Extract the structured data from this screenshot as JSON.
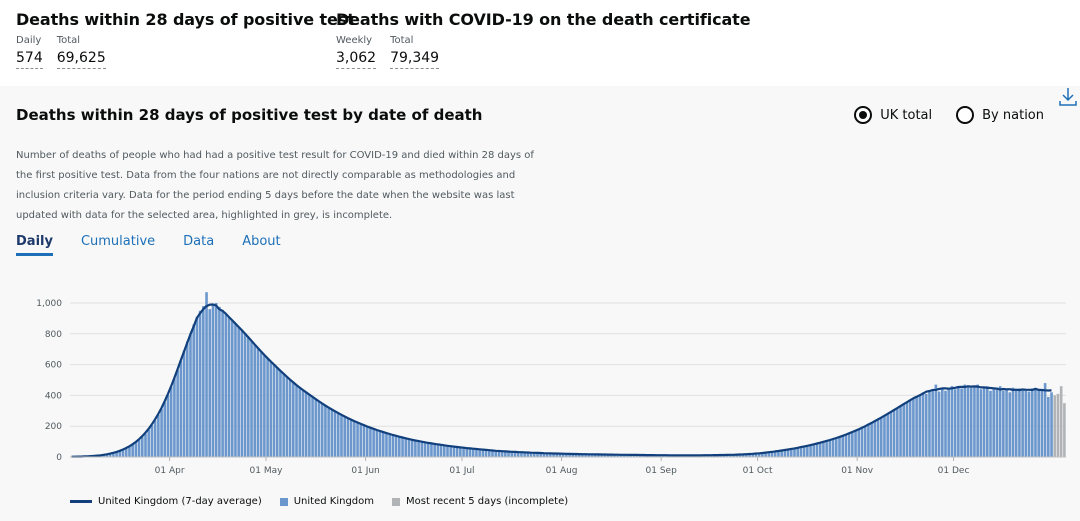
{
  "headlines": [
    {
      "title": "Deaths within 28 days of positive test",
      "metrics": [
        {
          "label": "Daily",
          "value": "574"
        },
        {
          "label": "Total",
          "value": "69,625"
        }
      ]
    },
    {
      "title": "Deaths with COVID-19 on the death certificate",
      "metrics": [
        {
          "label": "Weekly",
          "value": "3,062"
        },
        {
          "label": "Total",
          "value": "79,349"
        }
      ]
    }
  ],
  "card": {
    "title": "Deaths within 28 days of positive test by date of death",
    "radios": [
      {
        "label": "UK total",
        "checked": true
      },
      {
        "label": "By nation",
        "checked": false
      }
    ],
    "description": "Number of deaths of people who had had a positive test result for COVID-19 and died within 28 days of the first positive test. Data from the four nations are not directly comparable as methodologies and inclusion criteria vary. Data for the period ending 5 days before the date when the website was last updated with data for the selected area, highlighted in grey, is incomplete.",
    "tabs": [
      "Daily",
      "Cumulative",
      "Data",
      "About"
    ],
    "download_icon": "download-icon"
  },
  "colors": {
    "bar": "#6b97cd",
    "incomplete": "#b1b4b6",
    "line": "#12407c",
    "tab_active": "#1d70b8"
  },
  "chart_data": {
    "type": "bar",
    "xlabel": "",
    "ylabel": "",
    "ylim": [
      0,
      1000
    ],
    "yticks": [
      "0",
      "200",
      "400",
      "600",
      "800",
      "1,000"
    ],
    "xticks": [
      "01 Apr",
      "01 May",
      "01 Jun",
      "01 Jul",
      "01 Aug",
      "01 Sep",
      "01 Oct",
      "01 Nov",
      "01 Dec"
    ],
    "legend": [
      {
        "name": "United Kingdom (7-day average)",
        "kind": "line"
      },
      {
        "name": "United Kingdom",
        "kind": "bar"
      },
      {
        "name": "Most recent 5 days (incomplete)",
        "kind": "incomplete"
      }
    ],
    "start_date": "2020-03-01",
    "daily_values": [
      1,
      2,
      2,
      3,
      3,
      4,
      5,
      6,
      8,
      10,
      13,
      16,
      20,
      25,
      31,
      38,
      46,
      55,
      66,
      79,
      94,
      110,
      130,
      152,
      178,
      206,
      238,
      273,
      312,
      355,
      402,
      455,
      510,
      565,
      625,
      690,
      750,
      800,
      860,
      910,
      950,
      980,
      1070,
      960,
      990,
      1000,
      975,
      955,
      930,
      905,
      885,
      865,
      845,
      825,
      805,
      780,
      755,
      730,
      705,
      680,
      660,
      640,
      620,
      600,
      580,
      560,
      540,
      520,
      500,
      480,
      465,
      450,
      435,
      420,
      405,
      390,
      375,
      360,
      345,
      332,
      320,
      308,
      296,
      284,
      273,
      262,
      252,
      242,
      232,
      223,
      214,
      206,
      198,
      190,
      182,
      175,
      168,
      161,
      155,
      149,
      143,
      137,
      131,
      126,
      121,
      116,
      111,
      107,
      103,
      99,
      95,
      91,
      88,
      85,
      82,
      79,
      76,
      73,
      70,
      67,
      64,
      62,
      60,
      58,
      56,
      54,
      52,
      50,
      48,
      46,
      44,
      42,
      40,
      38,
      37,
      36,
      35,
      34,
      33,
      32,
      31,
      30,
      29,
      28,
      27,
      26,
      26,
      25,
      24,
      24,
      23,
      22,
      22,
      21,
      21,
      20,
      20,
      19,
      19,
      18,
      18,
      18,
      17,
      17,
      17,
      16,
      16,
      16,
      15,
      15,
      15,
      15,
      14,
      14,
      14,
      14,
      13,
      13,
      13,
      13,
      12,
      12,
      12,
      12,
      12,
      11,
      11,
      11,
      11,
      11,
      11,
      11,
      11,
      11,
      11,
      11,
      11,
      11,
      12,
      12,
      12,
      12,
      13,
      13,
      13,
      14,
      14,
      15,
      16,
      17,
      18,
      19,
      20,
      22,
      24,
      26,
      28,
      30,
      33,
      36,
      39,
      42,
      45,
      48,
      52,
      56,
      60,
      64,
      68,
      72,
      77,
      82,
      87,
      92,
      98,
      104,
      110,
      116,
      123,
      130,
      137,
      145,
      153,
      161,
      170,
      180,
      190,
      200,
      210,
      220,
      232,
      244,
      256,
      268,
      280,
      292,
      305,
      318,
      330,
      345,
      355,
      370,
      380,
      395,
      405,
      420,
      410,
      430,
      440,
      470,
      425,
      450,
      430,
      445,
      460,
      440,
      455,
      445,
      470,
      465,
      450,
      460,
      470,
      440,
      455,
      460,
      430,
      450,
      440,
      460,
      430,
      440,
      420,
      450,
      435,
      445,
      430,
      440,
      425,
      445,
      440,
      430,
      440,
      480,
      390,
      420
    ],
    "incomplete_values": [
      400,
      410,
      460,
      350
    ]
  }
}
